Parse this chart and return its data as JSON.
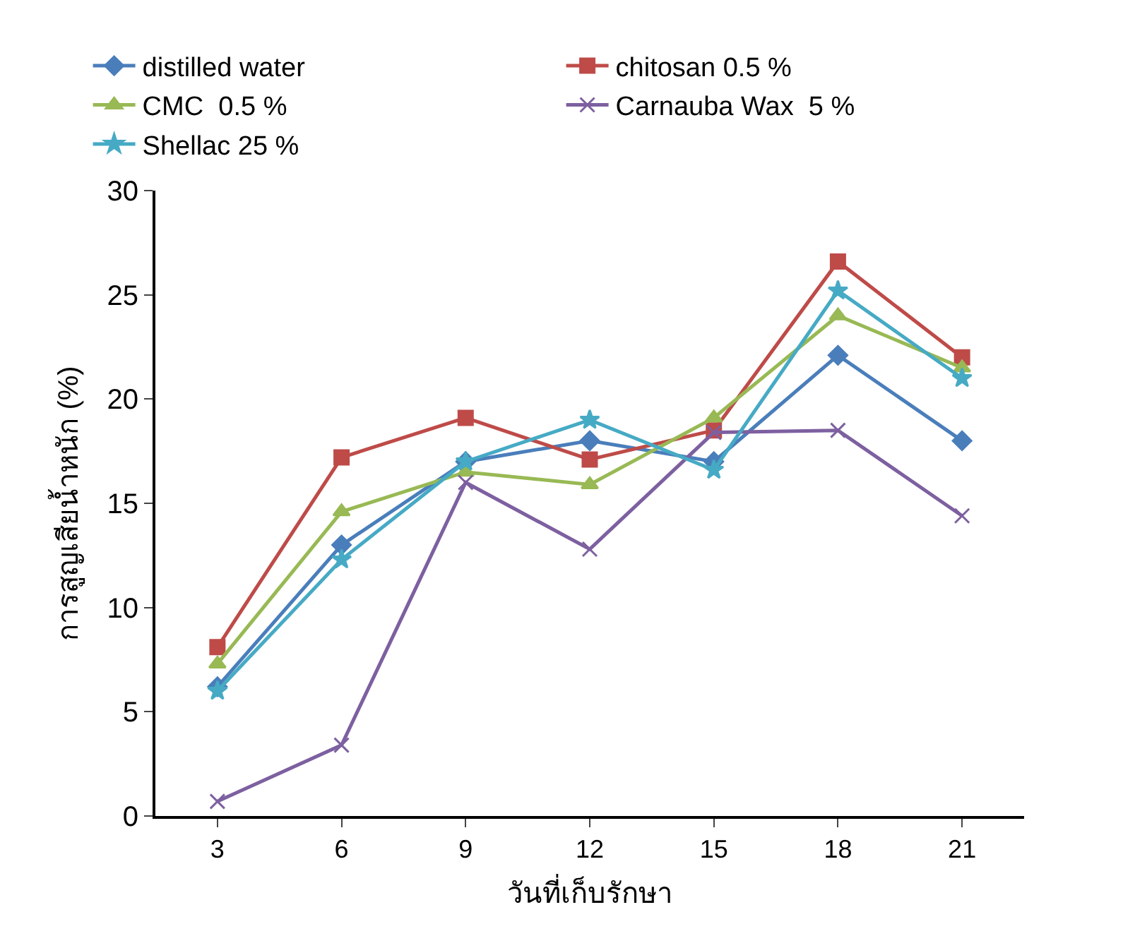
{
  "chart_data": {
    "type": "line",
    "xlabel": "วันที่เก็บรักษา",
    "ylabel": "การสูญเสียน้ำหนัก (%)",
    "categories": [
      "3",
      "6",
      "9",
      "12",
      "15",
      "18",
      "21"
    ],
    "ylim": [
      0,
      30
    ],
    "yticks": [
      0,
      5,
      10,
      15,
      20,
      25,
      30
    ],
    "legend": "top",
    "line_style": "solid",
    "series": [
      {
        "name": "distilled water",
        "color": "#4a7ebb",
        "marker": "diamond",
        "values": [
          6.2,
          13.0,
          17.0,
          18.0,
          17.0,
          22.1,
          18.0
        ]
      },
      {
        "name": "chitosan 0.5 %",
        "color": "#be4b48",
        "marker": "square",
        "values": [
          8.1,
          17.2,
          19.1,
          17.1,
          18.5,
          26.6,
          22.0
        ]
      },
      {
        "name": "CMC  0.5 %",
        "color": "#98b954",
        "marker": "triangle",
        "values": [
          7.3,
          14.6,
          16.5,
          15.9,
          19.1,
          24.0,
          21.5
        ]
      },
      {
        "name": "Carnauba Wax  5 %",
        "color": "#7d60a0",
        "marker": "cross",
        "values": [
          0.7,
          3.4,
          16.0,
          12.8,
          18.4,
          18.5,
          14.4
        ]
      },
      {
        "name": "Shellac 25 %",
        "color": "#46aac5",
        "marker": "star",
        "values": [
          6.0,
          12.3,
          17.0,
          19.0,
          16.6,
          25.2,
          21.0
        ]
      }
    ]
  }
}
